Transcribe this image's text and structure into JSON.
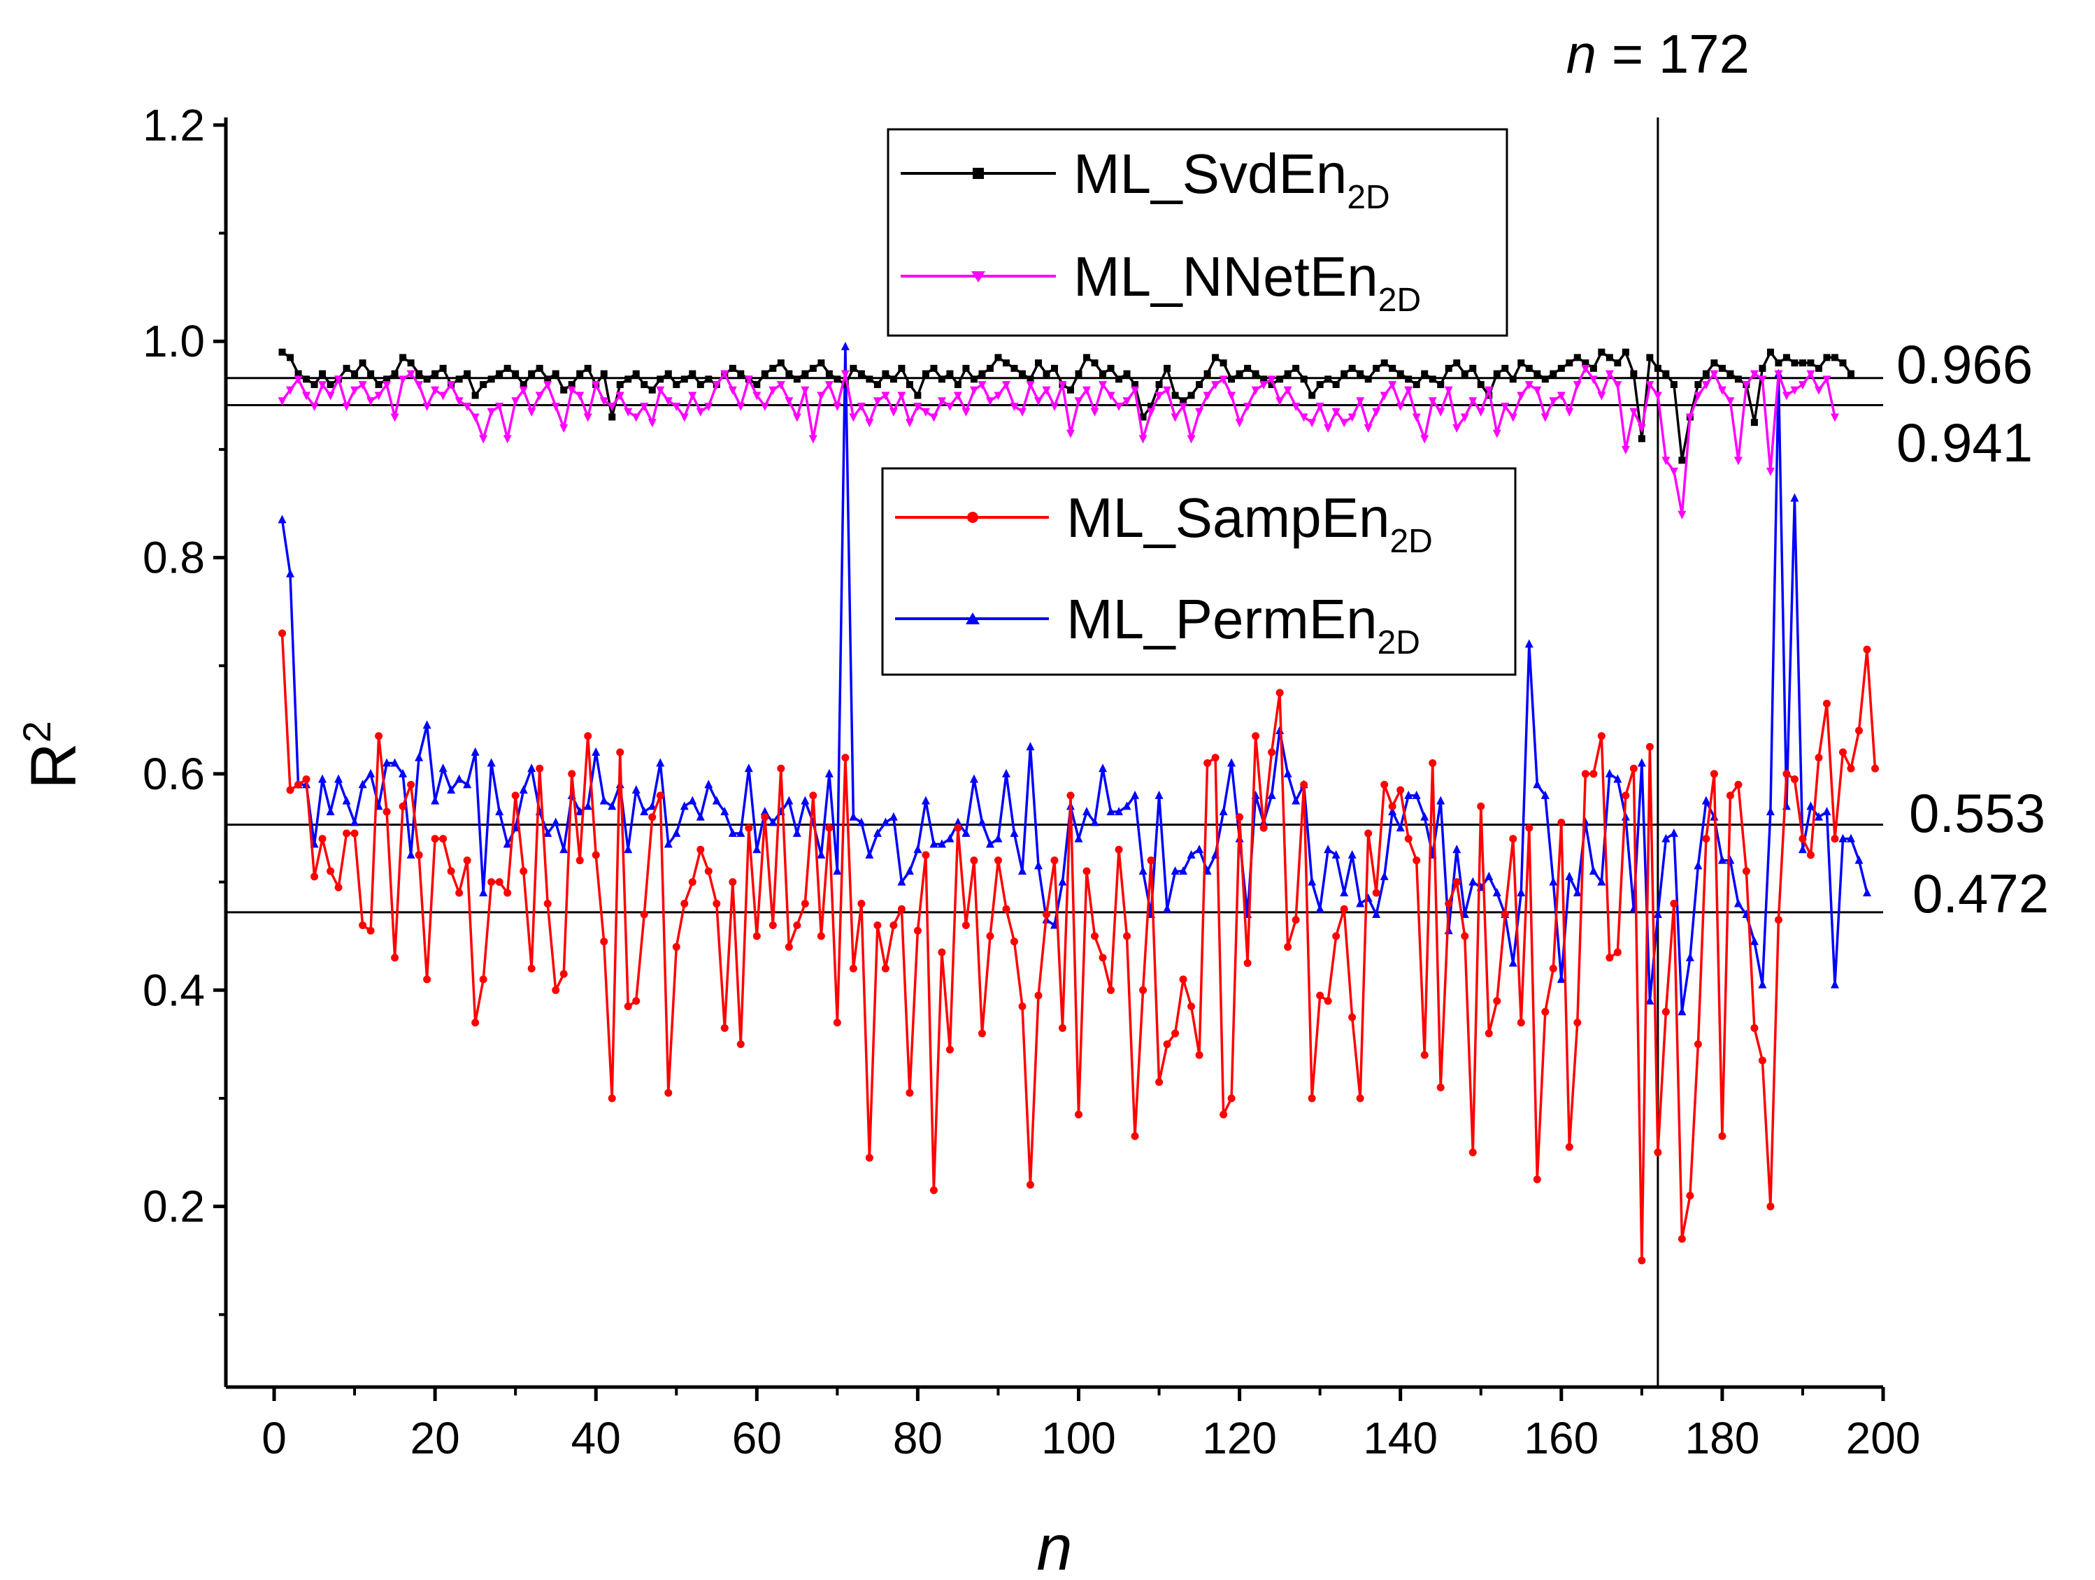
{
  "chart_data": {
    "type": "line",
    "title": "",
    "xlabel": "n",
    "ylabel": "R",
    "ylabel_sup": "2",
    "xlim": [
      -6,
      200
    ],
    "ylim": [
      0.033,
      1.207
    ],
    "x_ticks": [
      0,
      20,
      40,
      60,
      80,
      100,
      120,
      140,
      160,
      180,
      200
    ],
    "x_tick_labels": [
      "0",
      "20",
      "40",
      "60",
      "80",
      "100",
      "120",
      "140",
      "160",
      "180",
      "200"
    ],
    "y_ticks": [
      0.2,
      0.4,
      0.6,
      0.8,
      1.0,
      1.2
    ],
    "y_tick_labels": [
      "0.2",
      "0.4",
      "0.6",
      "0.8",
      "1.0",
      "1.2"
    ],
    "reference_lines": [
      {
        "y": 0.966,
        "label": "0.966"
      },
      {
        "y": 0.941,
        "label": "0.941"
      },
      {
        "y": 0.553,
        "label": "0.553"
      },
      {
        "y": 0.472,
        "label": "0.472"
      }
    ],
    "vertical_marker": {
      "x": 172,
      "label_var": "n",
      "label_rest": " = 172"
    },
    "series": [
      {
        "name": "ML_SvdEn",
        "name_sub": "2D",
        "color": "#000000",
        "marker": "square",
        "values": [
          0.99,
          0.985,
          0.97,
          0.965,
          0.96,
          0.97,
          0.96,
          0.965,
          0.975,
          0.97,
          0.98,
          0.97,
          0.96,
          0.965,
          0.97,
          0.985,
          0.98,
          0.97,
          0.965,
          0.97,
          0.975,
          0.96,
          0.965,
          0.97,
          0.95,
          0.96,
          0.965,
          0.97,
          0.975,
          0.97,
          0.96,
          0.97,
          0.975,
          0.965,
          0.97,
          0.955,
          0.96,
          0.97,
          0.975,
          0.96,
          0.97,
          0.93,
          0.96,
          0.965,
          0.97,
          0.96,
          0.955,
          0.965,
          0.97,
          0.96,
          0.965,
          0.97,
          0.96,
          0.965,
          0.96,
          0.97,
          0.975,
          0.97,
          0.965,
          0.96,
          0.97,
          0.975,
          0.98,
          0.97,
          0.965,
          0.97,
          0.975,
          0.98,
          0.97,
          0.965,
          0.96,
          0.975,
          0.97,
          0.965,
          0.96,
          0.97,
          0.965,
          0.975,
          0.96,
          0.95,
          0.97,
          0.975,
          0.965,
          0.97,
          0.96,
          0.975,
          0.965,
          0.97,
          0.975,
          0.985,
          0.98,
          0.975,
          0.97,
          0.965,
          0.98,
          0.97,
          0.975,
          0.96,
          0.955,
          0.97,
          0.985,
          0.98,
          0.97,
          0.975,
          0.965,
          0.97,
          0.96,
          0.93,
          0.94,
          0.96,
          0.975,
          0.95,
          0.945,
          0.95,
          0.96,
          0.97,
          0.985,
          0.98,
          0.965,
          0.97,
          0.975,
          0.97,
          0.965,
          0.96,
          0.965,
          0.97,
          0.975,
          0.965,
          0.95,
          0.96,
          0.965,
          0.96,
          0.97,
          0.975,
          0.97,
          0.965,
          0.975,
          0.98,
          0.975,
          0.97,
          0.965,
          0.96,
          0.97,
          0.965,
          0.96,
          0.975,
          0.98,
          0.97,
          0.975,
          0.96,
          0.95,
          0.97,
          0.975,
          0.965,
          0.98,
          0.975,
          0.97,
          0.965,
          0.97,
          0.975,
          0.98,
          0.985,
          0.98,
          0.975,
          0.99,
          0.985,
          0.98,
          0.99,
          0.97,
          0.91,
          0.985,
          0.975,
          0.97,
          0.96,
          0.89,
          0.93,
          0.96,
          0.97,
          0.98,
          0.975,
          0.97,
          0.965,
          0.96,
          0.925,
          0.975,
          0.99,
          0.98,
          0.985,
          0.98,
          0.98,
          0.98,
          0.975,
          0.985,
          0.985,
          0.98,
          0.97
        ]
      },
      {
        "name": "ML_NNetEn",
        "name_sub": "2D",
        "color": "#ff00ff",
        "marker": "triangle-down",
        "values": [
          0.945,
          0.955,
          0.965,
          0.95,
          0.94,
          0.96,
          0.95,
          0.965,
          0.94,
          0.955,
          0.96,
          0.945,
          0.95,
          0.96,
          0.93,
          0.965,
          0.97,
          0.96,
          0.94,
          0.955,
          0.95,
          0.96,
          0.945,
          0.94,
          0.93,
          0.91,
          0.935,
          0.94,
          0.91,
          0.945,
          0.955,
          0.935,
          0.95,
          0.96,
          0.94,
          0.92,
          0.955,
          0.95,
          0.93,
          0.96,
          0.945,
          0.94,
          0.95,
          0.935,
          0.93,
          0.94,
          0.925,
          0.955,
          0.945,
          0.94,
          0.93,
          0.95,
          0.935,
          0.94,
          0.96,
          0.97,
          0.955,
          0.94,
          0.965,
          0.95,
          0.94,
          0.955,
          0.96,
          0.945,
          0.93,
          0.955,
          0.91,
          0.95,
          0.96,
          0.94,
          0.97,
          0.93,
          0.94,
          0.925,
          0.945,
          0.95,
          0.935,
          0.95,
          0.925,
          0.94,
          0.935,
          0.93,
          0.945,
          0.94,
          0.95,
          0.935,
          0.955,
          0.96,
          0.945,
          0.95,
          0.96,
          0.94,
          0.935,
          0.96,
          0.945,
          0.955,
          0.94,
          0.96,
          0.915,
          0.945,
          0.955,
          0.935,
          0.96,
          0.95,
          0.94,
          0.945,
          0.955,
          0.91,
          0.935,
          0.95,
          0.955,
          0.93,
          0.94,
          0.91,
          0.935,
          0.95,
          0.96,
          0.965,
          0.95,
          0.925,
          0.94,
          0.955,
          0.96,
          0.965,
          0.945,
          0.955,
          0.94,
          0.93,
          0.925,
          0.94,
          0.92,
          0.935,
          0.925,
          0.93,
          0.945,
          0.92,
          0.935,
          0.95,
          0.96,
          0.94,
          0.955,
          0.93,
          0.91,
          0.945,
          0.935,
          0.955,
          0.92,
          0.93,
          0.945,
          0.935,
          0.955,
          0.915,
          0.94,
          0.93,
          0.95,
          0.96,
          0.955,
          0.93,
          0.945,
          0.95,
          0.935,
          0.96,
          0.975,
          0.965,
          0.95,
          0.97,
          0.96,
          0.9,
          0.935,
          0.92,
          0.96,
          0.95,
          0.89,
          0.88,
          0.84,
          0.93,
          0.95,
          0.96,
          0.97,
          0.955,
          0.945,
          0.89,
          0.96,
          0.97,
          0.965,
          0.88,
          0.97,
          0.95,
          0.955,
          0.96,
          0.97,
          0.955,
          0.965,
          0.93
        ]
      },
      {
        "name": "ML_SampEn",
        "name_sub": "2D",
        "color": "#ff0000",
        "marker": "circle",
        "values": [
          0.73,
          0.585,
          0.59,
          0.595,
          0.505,
          0.54,
          0.51,
          0.495,
          0.545,
          0.545,
          0.46,
          0.455,
          0.635,
          0.565,
          0.43,
          0.57,
          0.59,
          0.525,
          0.41,
          0.54,
          0.54,
          0.51,
          0.49,
          0.52,
          0.37,
          0.41,
          0.5,
          0.5,
          0.49,
          0.58,
          0.51,
          0.42,
          0.605,
          0.48,
          0.4,
          0.415,
          0.6,
          0.52,
          0.635,
          0.525,
          0.445,
          0.3,
          0.62,
          0.385,
          0.39,
          0.47,
          0.56,
          0.58,
          0.305,
          0.44,
          0.48,
          0.5,
          0.53,
          0.51,
          0.48,
          0.365,
          0.5,
          0.35,
          0.55,
          0.45,
          0.56,
          0.46,
          0.605,
          0.44,
          0.46,
          0.48,
          0.58,
          0.45,
          0.55,
          0.37,
          0.615,
          0.42,
          0.48,
          0.245,
          0.46,
          0.42,
          0.46,
          0.475,
          0.305,
          0.455,
          0.525,
          0.215,
          0.435,
          0.345,
          0.55,
          0.46,
          0.52,
          0.36,
          0.45,
          0.52,
          0.475,
          0.445,
          0.385,
          0.22,
          0.395,
          0.47,
          0.52,
          0.365,
          0.58,
          0.285,
          0.51,
          0.45,
          0.43,
          0.4,
          0.53,
          0.45,
          0.265,
          0.4,
          0.52,
          0.315,
          0.35,
          0.36,
          0.41,
          0.385,
          0.34,
          0.61,
          0.615,
          0.285,
          0.3,
          0.56,
          0.425,
          0.635,
          0.55,
          0.62,
          0.675,
          0.44,
          0.465,
          0.59,
          0.3,
          0.395,
          0.39,
          0.45,
          0.475,
          0.375,
          0.3,
          0.545,
          0.49,
          0.59,
          0.57,
          0.585,
          0.54,
          0.52,
          0.34,
          0.61,
          0.31,
          0.48,
          0.5,
          0.45,
          0.25,
          0.57,
          0.36,
          0.39,
          0.47,
          0.54,
          0.37,
          0.55,
          0.225,
          0.38,
          0.42,
          0.555,
          0.255,
          0.37,
          0.6,
          0.6,
          0.635,
          0.43,
          0.435,
          0.58,
          0.605,
          0.15,
          0.625,
          0.25,
          0.38,
          0.48,
          0.17,
          0.21,
          0.35,
          0.54,
          0.6,
          0.265,
          0.58,
          0.59,
          0.51,
          0.365,
          0.335,
          0.2,
          0.465,
          0.6,
          0.595,
          0.54,
          0.525,
          0.615,
          0.665,
          0.54,
          0.62,
          0.605,
          0.64,
          0.715,
          0.605
        ]
      },
      {
        "name": "ML_PermEn",
        "name_sub": "2D",
        "color": "#0000ff",
        "marker": "triangle-up",
        "values": [
          0.835,
          0.785,
          0.59,
          0.59,
          0.535,
          0.595,
          0.565,
          0.595,
          0.575,
          0.555,
          0.59,
          0.6,
          0.57,
          0.61,
          0.61,
          0.6,
          0.525,
          0.615,
          0.645,
          0.575,
          0.605,
          0.585,
          0.595,
          0.59,
          0.62,
          0.49,
          0.61,
          0.565,
          0.535,
          0.55,
          0.585,
          0.605,
          0.565,
          0.545,
          0.555,
          0.53,
          0.58,
          0.565,
          0.57,
          0.62,
          0.575,
          0.57,
          0.59,
          0.53,
          0.585,
          0.565,
          0.57,
          0.61,
          0.535,
          0.545,
          0.57,
          0.575,
          0.56,
          0.59,
          0.575,
          0.565,
          0.545,
          0.545,
          0.605,
          0.53,
          0.565,
          0.555,
          0.565,
          0.575,
          0.545,
          0.575,
          0.555,
          0.525,
          0.6,
          0.51,
          0.995,
          0.56,
          0.555,
          0.525,
          0.545,
          0.555,
          0.56,
          0.5,
          0.51,
          0.53,
          0.575,
          0.535,
          0.535,
          0.54,
          0.555,
          0.545,
          0.595,
          0.555,
          0.535,
          0.54,
          0.6,
          0.545,
          0.51,
          0.625,
          0.515,
          0.465,
          0.46,
          0.5,
          0.57,
          0.54,
          0.565,
          0.555,
          0.605,
          0.565,
          0.565,
          0.57,
          0.58,
          0.51,
          0.47,
          0.58,
          0.475,
          0.51,
          0.51,
          0.525,
          0.53,
          0.51,
          0.525,
          0.565,
          0.61,
          0.54,
          0.47,
          0.58,
          0.555,
          0.58,
          0.64,
          0.6,
          0.575,
          0.59,
          0.5,
          0.475,
          0.53,
          0.525,
          0.49,
          0.525,
          0.48,
          0.485,
          0.47,
          0.505,
          0.565,
          0.55,
          0.58,
          0.58,
          0.56,
          0.525,
          0.575,
          0.455,
          0.53,
          0.47,
          0.5,
          0.495,
          0.505,
          0.49,
          0.47,
          0.425,
          0.49,
          0.72,
          0.59,
          0.58,
          0.5,
          0.41,
          0.505,
          0.49,
          0.555,
          0.51,
          0.5,
          0.6,
          0.595,
          0.56,
          0.475,
          0.61,
          0.39,
          0.47,
          0.54,
          0.545,
          0.38,
          0.43,
          0.515,
          0.575,
          0.56,
          0.52,
          0.52,
          0.48,
          0.47,
          0.445,
          0.405,
          0.565,
          0.97,
          0.57,
          0.855,
          0.53,
          0.57,
          0.56,
          0.565,
          0.405,
          0.54,
          0.54,
          0.52,
          0.49
        ]
      }
    ],
    "legends": [
      {
        "position": "top-center",
        "series": [
          0,
          1
        ]
      },
      {
        "position": "center",
        "series": [
          2,
          3
        ]
      }
    ]
  }
}
